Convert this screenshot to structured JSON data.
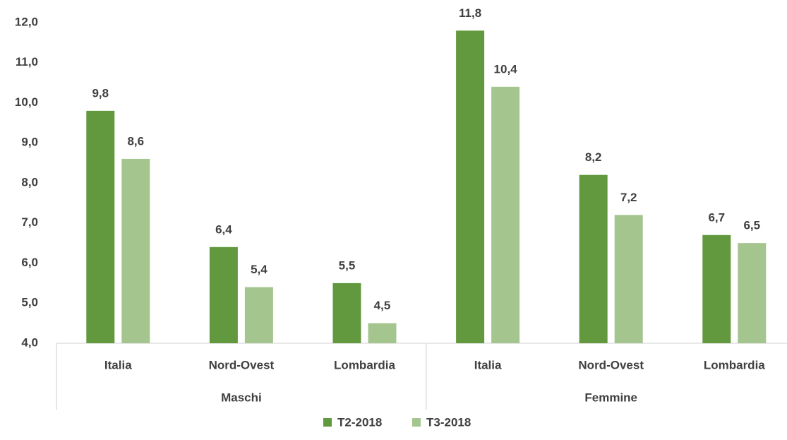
{
  "chart_data": {
    "type": "bar",
    "categories": [
      "Italia",
      "Nord-Ovest",
      "Lombardia",
      "Italia",
      "Nord-Ovest",
      "Lombardia"
    ],
    "groups": [
      "Maschi",
      "Femmine"
    ],
    "series": [
      {
        "name": "T2-2018",
        "color": "#62993e",
        "values": [
          9.8,
          6.4,
          5.5,
          11.8,
          8.2,
          6.7
        ],
        "value_labels": [
          "9,8",
          "6,4",
          "5,5",
          "11,8",
          "8,2",
          "6,7"
        ]
      },
      {
        "name": "T3-2018",
        "color": "#a5c58f",
        "values": [
          8.6,
          5.4,
          4.5,
          10.4,
          7.2,
          6.5
        ],
        "value_labels": [
          "8,6",
          "5,4",
          "4,5",
          "10,4",
          "7,2",
          "6,5"
        ]
      }
    ],
    "ylim": [
      4,
      12
    ],
    "yticks": [
      {
        "value": 4,
        "label": "4,0"
      },
      {
        "value": 5,
        "label": "5,0"
      },
      {
        "value": 6,
        "label": "6,0"
      },
      {
        "value": 7,
        "label": "7,0"
      },
      {
        "value": 8,
        "label": "8,0"
      },
      {
        "value": 9,
        "label": "9,0"
      },
      {
        "value": 10,
        "label": "10,0"
      },
      {
        "value": 11,
        "label": "11,0"
      },
      {
        "value": 12,
        "label": "12,0"
      }
    ],
    "legend": "bottom"
  }
}
